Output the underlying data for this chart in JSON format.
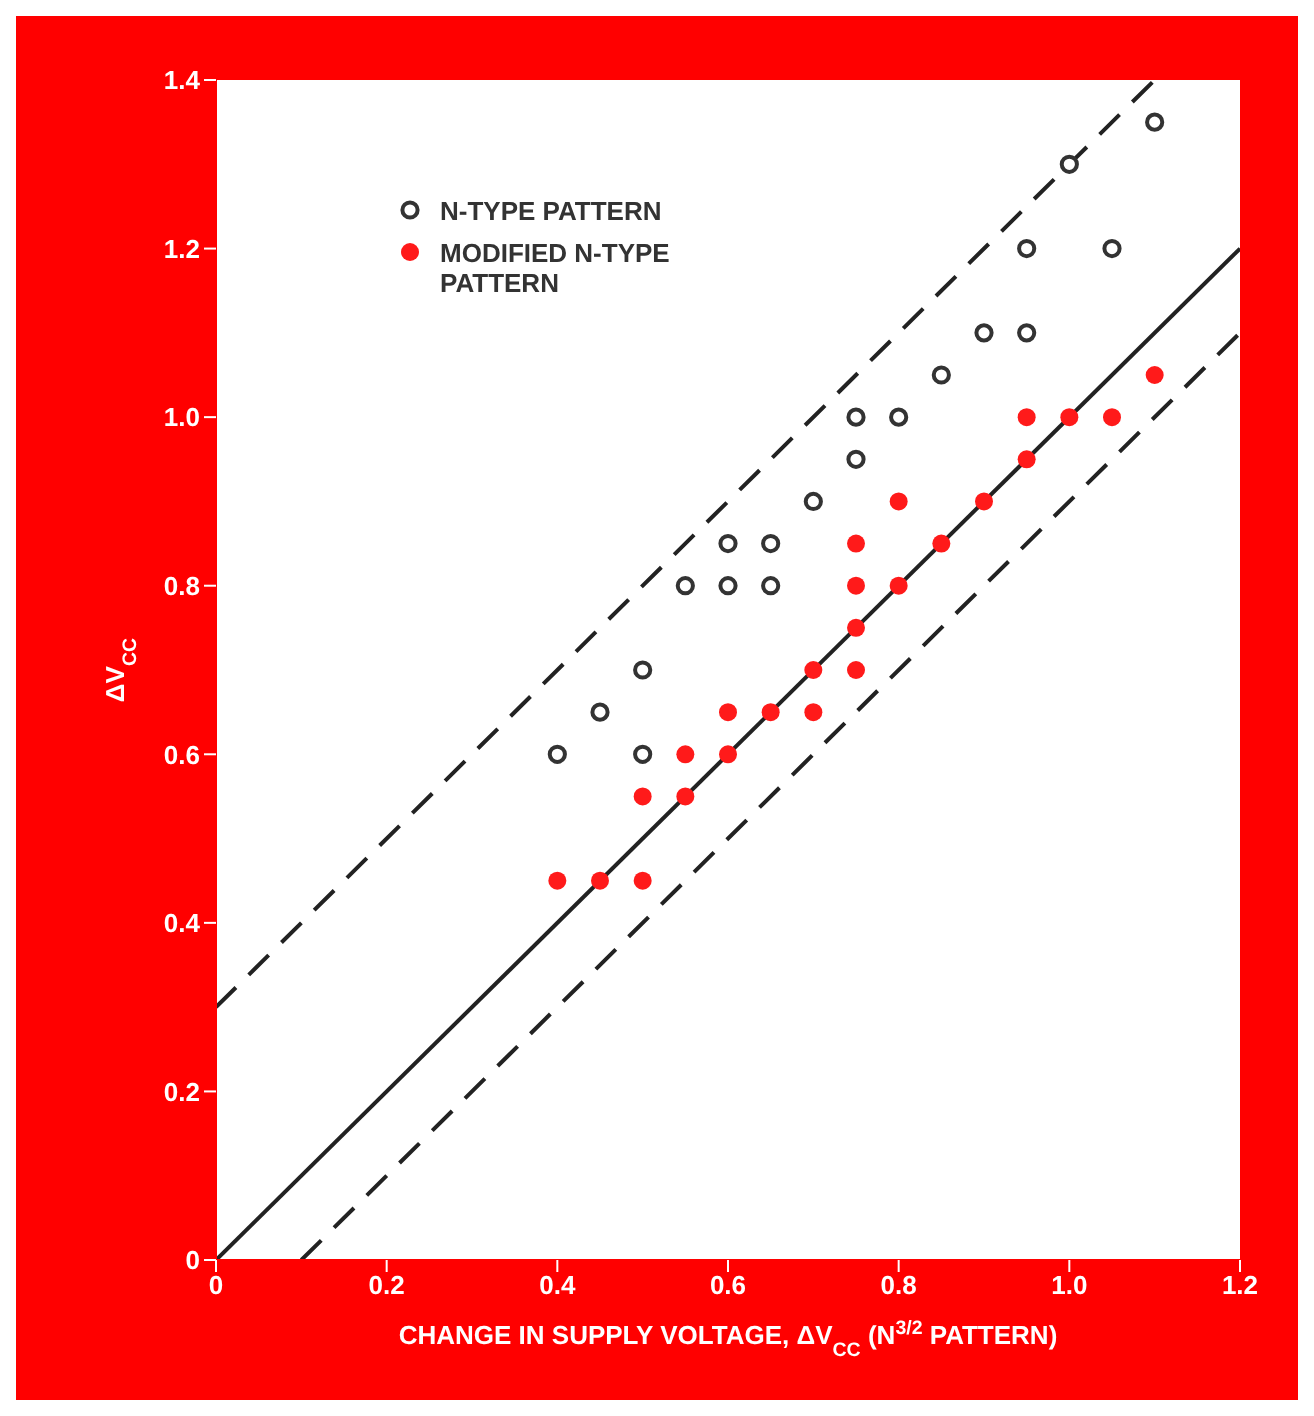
{
  "chart_data": {
    "type": "scatter",
    "xlabel": "CHANGE IN SUPPLY VOLTAGE, ΔV$_{CC}$ (N$^{3/2}$ PATTERN)",
    "ylabel": "ΔV$_{CC}$",
    "xlim": [
      0,
      1.2
    ],
    "ylim": [
      0,
      1.4
    ],
    "xticks": [
      0,
      0.2,
      0.4,
      0.6,
      0.8,
      {
        "value": 1,
        "label": "1.0"
      },
      1.2
    ],
    "yticks": [
      0,
      0.2,
      0.4,
      0.6,
      0.8,
      {
        "value": 1,
        "label": "1.0"
      },
      1.2,
      1.4
    ],
    "grid": false,
    "legend": "top left",
    "marker": "circle",
    "series": [
      {
        "name": "N-TYPE PATTERN",
        "color": "#333333",
        "x": [
          0.4,
          0.45,
          0.5,
          0.5,
          0.55,
          0.6,
          0.6,
          0.65,
          0.65,
          0.7,
          0.75,
          0.75,
          0.8,
          0.85,
          0.9,
          0.95,
          0.95,
          1.0,
          1.05,
          1.1
        ],
        "values": [
          0.6,
          0.65,
          0.7,
          0.6,
          0.8,
          0.85,
          0.8,
          0.85,
          0.8,
          0.9,
          1.0,
          0.95,
          1.0,
          1.05,
          1.1,
          1.2,
          1.1,
          1.3,
          1.2,
          1.35
        ]
      },
      {
        "name": "MODIFIED N-TYPE PATTERN",
        "color": "#ff1a1a",
        "x": [
          0.4,
          0.45,
          0.5,
          0.5,
          0.55,
          0.55,
          0.6,
          0.6,
          0.65,
          0.7,
          0.7,
          0.75,
          0.75,
          0.75,
          0.75,
          0.8,
          0.8,
          0.85,
          0.9,
          0.95,
          0.95,
          1.0,
          1.05,
          1.1
        ],
        "values": [
          0.45,
          0.45,
          0.45,
          0.55,
          0.6,
          0.55,
          0.65,
          0.6,
          0.65,
          0.7,
          0.65,
          0.85,
          0.8,
          0.75,
          0.7,
          0.9,
          0.8,
          0.85,
          0.9,
          1.0,
          0.95,
          1.0,
          1.0,
          1.05
        ]
      },
      {
        "type": "line",
        "marker": "none",
        "color": "#222222",
        "line_style": "solid",
        "x": [
          0,
          1.2
        ],
        "values": [
          0,
          1.2
        ]
      },
      {
        "type": "line",
        "marker": "none",
        "color": "#222222",
        "line_style": "dashed",
        "x": [
          0,
          1.1
        ],
        "values": [
          0.3,
          1.4
        ]
      },
      {
        "type": "line",
        "marker": "none",
        "color": "#222222",
        "line_style": "dashed",
        "x": [
          0.1,
          1.2
        ],
        "values": [
          0,
          1.1
        ]
      }
    ]
  }
}
